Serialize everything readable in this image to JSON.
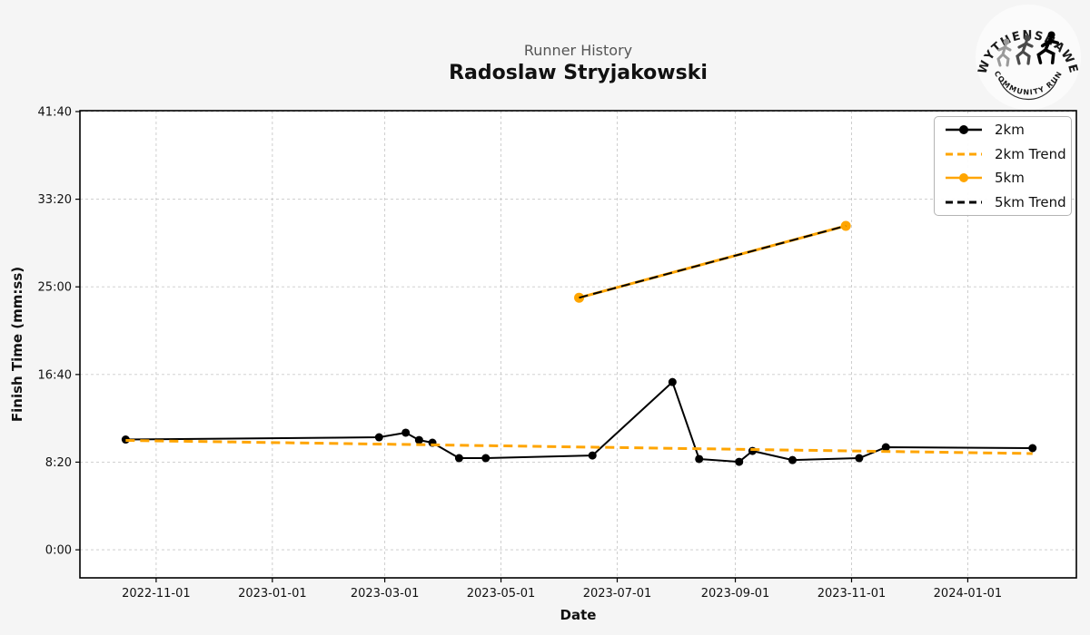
{
  "header": {
    "subtitle": "Runner History",
    "title": "Radoslaw Stryjakowski"
  },
  "logo": {
    "top_text": "WYTHENSHAWE",
    "bottom_text": "COMMUNITY RUN"
  },
  "colors": {
    "background": "#f5f5f5",
    "plot_background": "#ffffff",
    "grid": "#c9c9c9",
    "spine": "#000000",
    "subtitle_gray": "#555555",
    "text": "#111111",
    "orange": "#FFA500",
    "black": "#000000"
  },
  "chart_data": {
    "type": "line",
    "title": "Runner History",
    "subtitle": "Radoslaw Stryjakowski",
    "xlabel": "Date",
    "ylabel": "Finish Time (mm:ss)",
    "grid": true,
    "legend_position": "upper right",
    "x_axis": {
      "min_date": "2022-09-22",
      "max_date": "2024-02-27",
      "tick_dates": [
        "2022-11-01",
        "2023-01-01",
        "2023-03-01",
        "2023-05-01",
        "2023-07-01",
        "2023-09-01",
        "2023-11-01",
        "2024-01-01"
      ],
      "tick_labels": [
        "2022-11-01",
        "2023-01-01",
        "2023-03-01",
        "2023-05-01",
        "2023-07-01",
        "2023-09-01",
        "2023-11-01",
        "2024-01-01"
      ]
    },
    "y_axis": {
      "min_seconds": -160,
      "max_seconds": 2505,
      "tick_seconds": [
        0,
        500,
        1000,
        1500,
        2000,
        2500
      ],
      "tick_labels": [
        "0:00",
        "8:20",
        "16:40",
        "25:00",
        "33:20",
        "41:40"
      ]
    },
    "series": [
      {
        "name": "2km",
        "style": {
          "color": "#000000",
          "dashed": false,
          "marker": true,
          "width": 2,
          "marker_r": 4.5
        },
        "points": [
          {
            "date": "2022-10-16",
            "seconds": 629,
            "time": "10:29"
          },
          {
            "date": "2023-02-26",
            "seconds": 642,
            "time": "10:42"
          },
          {
            "date": "2023-03-12",
            "seconds": 668,
            "time": "11:08"
          },
          {
            "date": "2023-03-19",
            "seconds": 626,
            "time": "10:26"
          },
          {
            "date": "2023-03-26",
            "seconds": 611,
            "time": "10:11"
          },
          {
            "date": "2023-04-09",
            "seconds": 523,
            "time": "8:43"
          },
          {
            "date": "2023-04-23",
            "seconds": 523,
            "time": "8:43"
          },
          {
            "date": "2023-06-18",
            "seconds": 538,
            "time": "8:58"
          },
          {
            "date": "2023-07-30",
            "seconds": 957,
            "time": "15:57"
          },
          {
            "date": "2023-08-13",
            "seconds": 518,
            "time": "8:38"
          },
          {
            "date": "2023-09-03",
            "seconds": 502,
            "time": "8:22"
          },
          {
            "date": "2023-09-10",
            "seconds": 564,
            "time": "9:24"
          },
          {
            "date": "2023-10-01",
            "seconds": 512,
            "time": "8:32"
          },
          {
            "date": "2023-11-05",
            "seconds": 523,
            "time": "8:43"
          },
          {
            "date": "2023-11-19",
            "seconds": 585,
            "time": "9:45"
          },
          {
            "date": "2024-02-04",
            "seconds": 580,
            "time": "9:40"
          }
        ]
      },
      {
        "name": "2km Trend",
        "style": {
          "color": "#FFA500",
          "dashed": true,
          "marker": false,
          "width": 3,
          "marker_r": 0
        },
        "points": [
          {
            "date": "2022-10-16",
            "seconds": 624,
            "time": "10:24"
          },
          {
            "date": "2024-02-04",
            "seconds": 549,
            "time": "9:09"
          }
        ]
      },
      {
        "name": "5km",
        "style": {
          "color": "#FFA500",
          "dashed": false,
          "marker": true,
          "width": 3,
          "marker_r": 5.5
        },
        "points": [
          {
            "date": "2023-06-11",
            "seconds": 1438,
            "time": "23:58"
          },
          {
            "date": "2023-10-29",
            "seconds": 1848,
            "time": "30:48"
          }
        ]
      },
      {
        "name": "5km Trend",
        "style": {
          "color": "#000000",
          "dashed": true,
          "marker": false,
          "width": 2,
          "marker_r": 0
        },
        "points": [
          {
            "date": "2023-06-11",
            "seconds": 1438,
            "time": "23:58"
          },
          {
            "date": "2023-10-29",
            "seconds": 1848,
            "time": "30:48"
          }
        ]
      }
    ],
    "legend": [
      {
        "label": "2km",
        "color": "#000000",
        "dashed": false,
        "marker": true
      },
      {
        "label": "2km Trend",
        "color": "#FFA500",
        "dashed": true,
        "marker": false
      },
      {
        "label": "5km",
        "color": "#FFA500",
        "dashed": false,
        "marker": true
      },
      {
        "label": "5km Trend",
        "color": "#000000",
        "dashed": true,
        "marker": false
      }
    ]
  }
}
